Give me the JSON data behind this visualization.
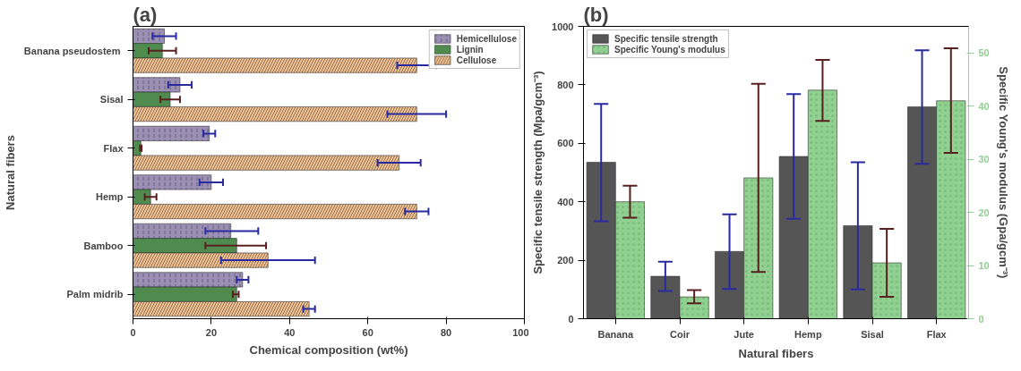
{
  "chart_data": [
    {
      "type": "bar",
      "orientation": "horizontal",
      "annotations": [
        "(a)"
      ],
      "xlabel": "Chemical composition (wt%)",
      "ylabel": "Natural fibers",
      "categories": [
        "Banana  pseudostem",
        "Sisal",
        "Flax",
        "Hemp",
        "Bamboo",
        "Palm midrib"
      ],
      "xlim": [
        0,
        100
      ],
      "xticks": [
        0,
        20,
        40,
        60,
        80,
        100
      ],
      "legend": "top right",
      "grid": false,
      "series": [
        {
          "name": "Hemicellulose",
          "color": "#9b8fb5",
          "values": [
            8,
            12,
            19.5,
            20,
            25,
            28
          ],
          "errors": [
            [
              5,
              11
            ],
            [
              9,
              15
            ],
            [
              18,
              21
            ],
            [
              17,
              23
            ],
            [
              18.5,
              32
            ],
            [
              26.5,
              29.5
            ]
          ]
        },
        {
          "name": "Lignin",
          "color": "#4f8a4f",
          "values": [
            7.5,
            9.5,
            2,
            4.5,
            26.5,
            26.5
          ],
          "errors": [
            [
              4,
              11
            ],
            [
              7,
              12
            ],
            [
              1.8,
              2.2
            ],
            [
              3,
              6
            ],
            [
              18.5,
              34
            ],
            [
              25.5,
              27
            ]
          ]
        },
        {
          "name": "Cellulose",
          "color": "#f5c08c",
          "values": [
            72.5,
            72.5,
            68,
            72.5,
            34.5,
            45
          ],
          "errors": [
            [
              67.5,
              77.5
            ],
            [
              65,
              80
            ],
            [
              62.5,
              73.5
            ],
            [
              69.5,
              75.5
            ],
            [
              22.5,
              46.5
            ],
            [
              43.5,
              46.5
            ]
          ]
        }
      ]
    },
    {
      "type": "bar",
      "annotations": [
        "(b)"
      ],
      "xlabel": "Natural fibers",
      "ylabel": "Specific tensile strength (Mpa/gcm⁻³)",
      "y2label": "Specific Young's modulus (Gpa/gcm⁻³)",
      "categories": [
        "Banana",
        "Coir",
        "Jute",
        "Hemp",
        "Sisal",
        "Flax"
      ],
      "ylim": [
        0,
        1000
      ],
      "yticks": [
        0,
        200,
        400,
        600,
        800,
        1000
      ],
      "y2lim": [
        0,
        55
      ],
      "y2ticks": [
        0,
        10,
        20,
        30,
        40,
        50
      ],
      "legend": "top left",
      "grid": false,
      "series": [
        {
          "name": "Specific tensile strength",
          "color": "#555555",
          "values": [
            535,
            145,
            230,
            555,
            318,
            725
          ],
          "errors": [
            [
              333,
              735
            ],
            [
              95,
              195
            ],
            [
              102,
              357
            ],
            [
              342,
              768
            ],
            [
              100,
              535
            ],
            [
              530,
              918
            ]
          ]
        },
        {
          "name": "Specific Young's modulus",
          "color": "#90d090",
          "axis": "y2",
          "values": [
            22,
            4.1,
            26.5,
            43,
            10.5,
            41
          ],
          "errors": [
            [
              19,
              25
            ],
            [
              2.9,
              5.4
            ],
            [
              8.8,
              44.2
            ],
            [
              37.2,
              48.7
            ],
            [
              4.1,
              16.9
            ],
            [
              31.2,
              50.9
            ]
          ]
        }
      ]
    }
  ]
}
